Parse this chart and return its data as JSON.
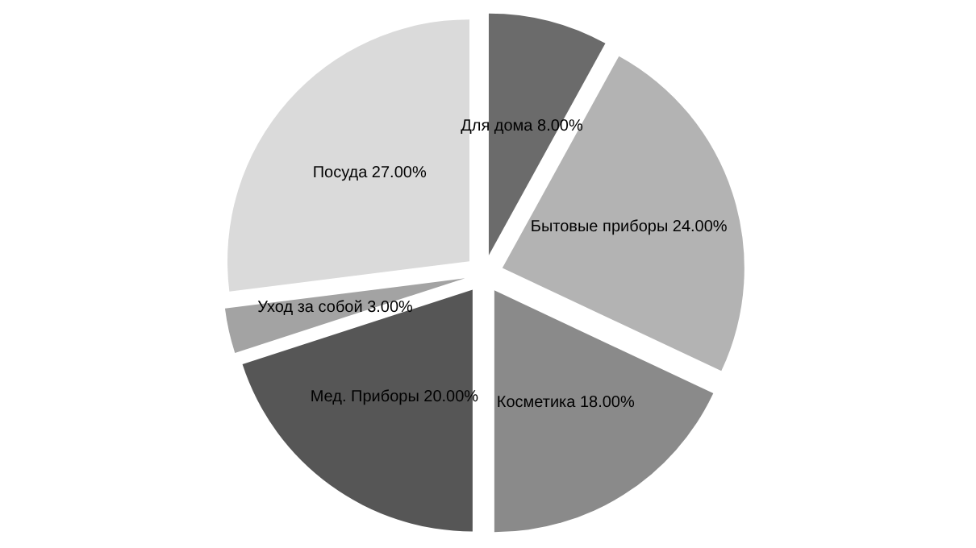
{
  "chart_data": {
    "type": "pie",
    "categories": [
      "Для дома",
      "Бытовые приборы",
      "Косметика",
      "Мед. Приборы",
      "Уход за собой",
      "Посуда"
    ],
    "values": [
      8,
      24,
      18,
      20,
      3,
      27
    ],
    "value_labels": [
      "8.00%",
      "24.00%",
      "18.00%",
      "20.00%",
      "3.00%",
      "27.00%"
    ],
    "colors": [
      "#6b6b6b",
      "#b3b3b3",
      "#8a8a8a",
      "#565656",
      "#a3a3a3",
      "#dadada"
    ]
  }
}
